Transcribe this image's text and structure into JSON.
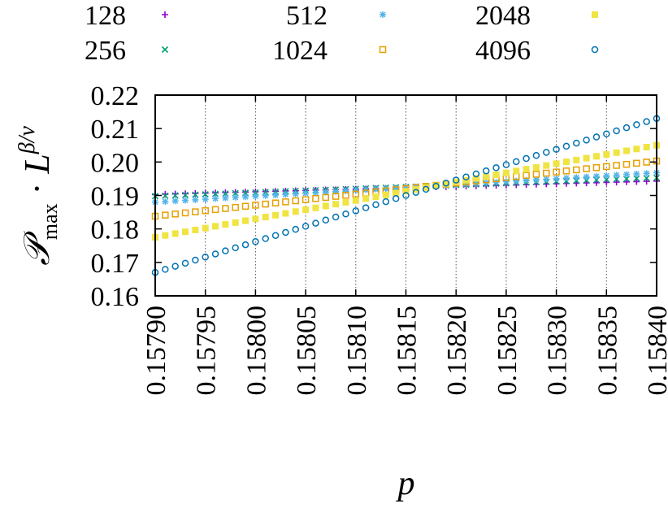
{
  "chart_data": {
    "type": "scatter",
    "title": "",
    "xlabel": "p",
    "ylabel": "𝒫max · L^(β/ν)",
    "xlim": [
      0.1579,
      0.1584
    ],
    "ylim": [
      0.16,
      0.22
    ],
    "x_ticks": [
      "0.15790",
      "0.15795",
      "0.15800",
      "0.15805",
      "0.15810",
      "0.15815",
      "0.15820",
      "0.15825",
      "0.15830",
      "0.15835",
      "0.15840"
    ],
    "y_ticks": [
      "0.16",
      "0.17",
      "0.18",
      "0.19",
      "0.20",
      "0.21",
      "0.22"
    ],
    "grid": "vertical dotted",
    "legend_position": "top, above plot",
    "n_points": 51,
    "series": [
      {
        "name": "128",
        "marker": "plus",
        "color": "#9400d3",
        "y_start": 0.1903,
        "y_end": 0.1943
      },
      {
        "name": "256",
        "marker": "cross",
        "color": "#009e73",
        "y_start": 0.1898,
        "y_end": 0.1953
      },
      {
        "name": "512",
        "marker": "star",
        "color": "#56b4e9",
        "y_start": 0.188,
        "y_end": 0.1968
      },
      {
        "name": "1024",
        "marker": "open-square",
        "color": "#e69f00",
        "y_start": 0.1838,
        "y_end": 0.2003
      },
      {
        "name": "2048",
        "marker": "filled-square",
        "color": "#f0e442",
        "y_start": 0.1775,
        "y_end": 0.205
      },
      {
        "name": "4096",
        "marker": "open-circle",
        "color": "#0072b2",
        "y_start": 0.167,
        "y_end": 0.213
      }
    ]
  }
}
